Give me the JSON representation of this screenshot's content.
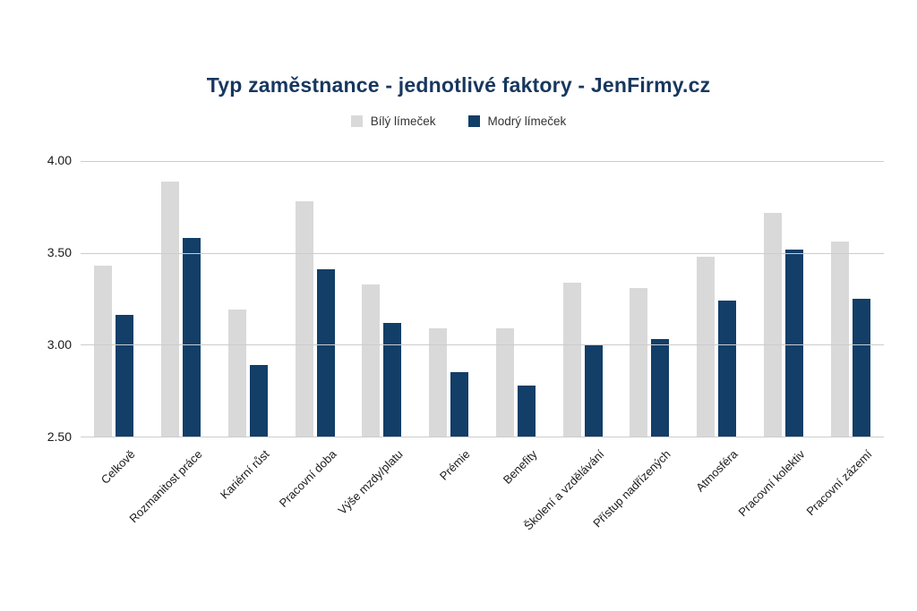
{
  "title": "Typ zaměstnance - jednotlivé faktory - JenFirmy.cz",
  "colors": {
    "title": "#17375e",
    "white_collar_bar": "#d9d9d9",
    "blue_collar_bar": "#123e68",
    "gridline": "#cccccc",
    "axis_text": "#1a1a1a",
    "background": "#ffffff"
  },
  "legend": {
    "items": [
      {
        "label": "Bílý límeček",
        "color": "#d9d9d9"
      },
      {
        "label": "Modrý límeček",
        "color": "#123e68"
      }
    ]
  },
  "chart_data": {
    "type": "bar",
    "title": "Typ zaměstnance - jednotlivé faktory - JenFirmy.cz",
    "categories": [
      "Celkově",
      "Rozmanitost práce",
      "Kariérní růst",
      "Pracovní doba",
      "Výše mzdy/platu",
      "Prémie",
      "Benefity",
      "Školení a vzdělávání",
      "Přístup nadřízených",
      "Atmosféra",
      "Pracovní kolektiv",
      "Pracovní zázemí"
    ],
    "series": [
      {
        "name": "Bílý límeček",
        "color": "#d9d9d9",
        "values": [
          3.43,
          3.89,
          3.19,
          3.78,
          3.33,
          3.09,
          3.09,
          3.34,
          3.31,
          3.48,
          3.72,
          3.56
        ]
      },
      {
        "name": "Modrý límeček",
        "color": "#123e68",
        "values": [
          3.16,
          3.58,
          2.89,
          3.41,
          3.12,
          2.85,
          2.78,
          3.0,
          3.03,
          3.24,
          3.52,
          3.25
        ]
      }
    ],
    "xlabel": "",
    "ylabel": "",
    "ylim": [
      2.5,
      4.0
    ],
    "yticks": [
      4.0,
      3.5,
      3.0,
      2.5
    ],
    "ytick_labels": [
      "4.00",
      "3.50",
      "3.00",
      "2.50"
    ],
    "grid": true,
    "legend_position": "top",
    "xlabel_rotation_deg": 45
  }
}
